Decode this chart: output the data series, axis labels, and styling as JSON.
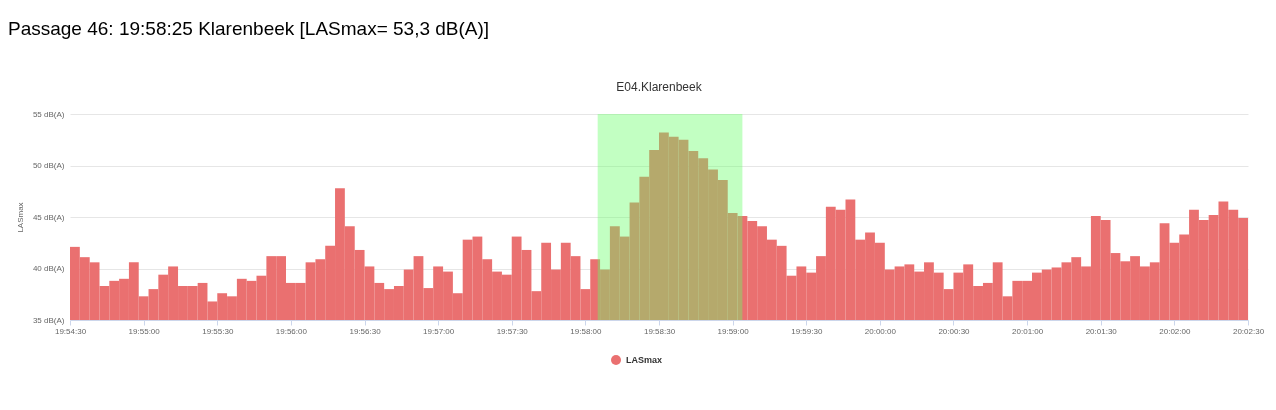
{
  "chart_data": {
    "type": "bar",
    "title": "Passage 46: 19:58:25 Klarenbeek [LASmax= 53,3 dB(A)]",
    "subtitle": "E04.Klarenbeek",
    "ylabel": "LASmax",
    "x": [
      19.90833,
      19.90944,
      19.91056,
      19.91167,
      19.91278,
      19.91389,
      19.915,
      19.91611,
      19.91722,
      19.91833,
      19.91944,
      19.92056,
      19.92167,
      19.92278,
      19.92389,
      19.925,
      19.92611,
      19.92722,
      19.92833,
      19.92944,
      19.93056,
      19.93167,
      19.93278,
      19.93389,
      19.935,
      19.93611,
      19.93722,
      19.93833,
      19.93944,
      19.94056,
      19.94167,
      19.94278,
      19.94389,
      19.945,
      19.94611,
      19.94722,
      19.94833,
      19.94944,
      19.95056,
      19.95167,
      19.95278,
      19.95389,
      19.955,
      19.95611,
      19.95722,
      19.95833,
      19.95944,
      19.96056,
      19.96167,
      19.96278,
      19.96389,
      19.965,
      19.96611,
      19.96722,
      19.96833,
      19.96944,
      19.97056,
      19.97167,
      19.97278,
      19.97389,
      19.975,
      19.97611,
      19.97722,
      19.97833,
      19.97944,
      19.98056,
      19.98167,
      19.98278,
      19.98389,
      19.985,
      19.98611,
      19.98722,
      19.98833,
      19.98944,
      19.99056,
      19.99167,
      19.99278,
      19.99389,
      19.995,
      19.99611,
      19.99722,
      19.99833,
      19.99944,
      20.00056,
      20.00167,
      20.00278,
      20.00389,
      20.005,
      20.00611,
      20.00722,
      20.00833,
      20.00944,
      20.01056,
      20.01167,
      20.01278,
      20.01389,
      20.015,
      20.01611,
      20.01722,
      20.01833,
      20.01944,
      20.02056,
      20.02167,
      20.02278,
      20.02389,
      20.025,
      20.02611,
      20.02722,
      20.02833,
      20.02944,
      20.03056,
      20.03167,
      20.03278,
      20.03389,
      20.035,
      20.03611,
      20.03722,
      20.03833,
      20.03944,
      20.04056
    ],
    "series": [
      {
        "name": "LASmax",
        "color": "#ea7070",
        "values": [
          42.1,
          41.1,
          40.6,
          38.3,
          38.8,
          39.0,
          40.6,
          37.3,
          38.0,
          39.4,
          40.2,
          38.3,
          38.3,
          38.6,
          36.8,
          37.6,
          37.3,
          39.0,
          38.8,
          39.3,
          41.2,
          41.2,
          38.6,
          38.6,
          40.6,
          40.9,
          42.2,
          47.8,
          44.1,
          41.8,
          40.2,
          38.6,
          38.0,
          38.3,
          39.9,
          41.2,
          38.1,
          40.2,
          39.7,
          37.6,
          42.8,
          43.1,
          40.9,
          39.7,
          39.4,
          43.1,
          41.8,
          37.8,
          42.5,
          39.9,
          42.5,
          41.2,
          38.0,
          40.9,
          39.9,
          44.1,
          43.1,
          46.4,
          48.9,
          51.5,
          53.2,
          52.8,
          52.5,
          51.4,
          50.7,
          49.6,
          48.6,
          45.4,
          45.1,
          44.6,
          44.1,
          42.8,
          42.2,
          39.3,
          40.2,
          39.6,
          41.2,
          46.0,
          45.7,
          46.7,
          42.8,
          43.5,
          42.5,
          39.9,
          40.2,
          40.4,
          39.7,
          40.6,
          39.6,
          38.0,
          39.6,
          40.4,
          38.3,
          38.6,
          40.6,
          37.3,
          38.8,
          38.8,
          39.6,
          39.9,
          40.1,
          40.6,
          41.1,
          40.2,
          45.1,
          44.7,
          41.5,
          40.7,
          41.2,
          40.2,
          40.6,
          44.4,
          42.5,
          43.3,
          45.7,
          44.7,
          45.2,
          46.5,
          45.7,
          44.9
        ]
      }
    ],
    "xlim": [
      19.90833,
      20.04167
    ],
    "xticks": [
      {
        "value": 19.90833,
        "label": "19:54:30"
      },
      {
        "value": 19.91667,
        "label": "19:55:00"
      },
      {
        "value": 19.925,
        "label": "19:55:30"
      },
      {
        "value": 19.93333,
        "label": "19:56:00"
      },
      {
        "value": 19.94167,
        "label": "19:56:30"
      },
      {
        "value": 19.95,
        "label": "19:57:00"
      },
      {
        "value": 19.95833,
        "label": "19:57:30"
      },
      {
        "value": 19.96667,
        "label": "19:58:00"
      },
      {
        "value": 19.975,
        "label": "19:58:30"
      },
      {
        "value": 19.98333,
        "label": "19:59:00"
      },
      {
        "value": 19.99167,
        "label": "19:59:30"
      },
      {
        "value": 20.0,
        "label": "20:00:00"
      },
      {
        "value": 20.00833,
        "label": "20:00:30"
      },
      {
        "value": 20.01667,
        "label": "20:01:00"
      },
      {
        "value": 20.025,
        "label": "20:01:30"
      },
      {
        "value": 20.03333,
        "label": "20:02:00"
      },
      {
        "value": 20.04167,
        "label": "20:02:30"
      }
    ],
    "ylim": [
      35,
      55
    ],
    "yticks": [
      {
        "value": 35,
        "label": "35 dB(A)"
      },
      {
        "value": 40,
        "label": "40 dB(A)"
      },
      {
        "value": 45,
        "label": "45 dB(A)"
      },
      {
        "value": 50,
        "label": "50 dB(A)"
      },
      {
        "value": 55,
        "label": "55 dB(A)"
      }
    ],
    "bands": [
      {
        "axis": "x",
        "from": 19.96806,
        "to": 19.98444,
        "color": "#66ff66"
      }
    ],
    "grid": "y",
    "legend": "bottom"
  }
}
